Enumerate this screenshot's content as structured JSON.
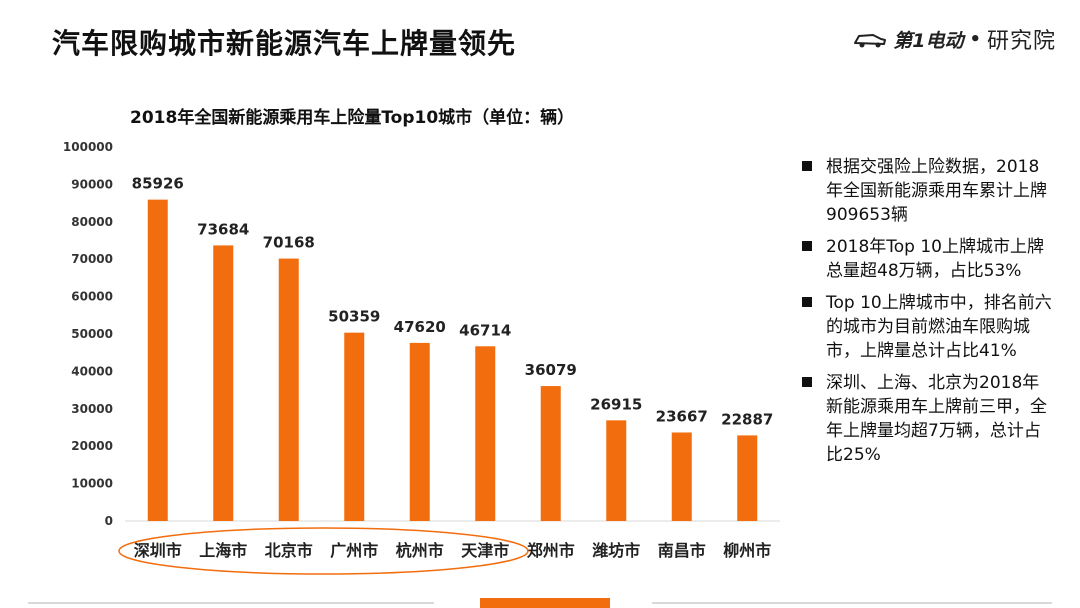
{
  "page": {
    "title": "汽车限购城市新能源汽车上牌量领先",
    "brand": {
      "logo_text": "第1电动",
      "separator": "•",
      "name": "研究院"
    },
    "notes": [
      "根据交强险上险数据，2018年全国新能源乘用车累计上牌909653辆",
      "2018年Top 10上牌城市上牌总量超48万辆，占比53%",
      "Top 10上牌城市中，排名前六的城市为目前燃油车限购城市，上牌量总计占比41%",
      "深圳、上海、北京为2018年新能源乘用车上牌前三甲，全年上牌量均超7万辆，总计占比25%"
    ]
  },
  "chart_data": {
    "type": "bar",
    "title": "2018年全国新能源乘用车上险量Top10城市（单位：辆）",
    "categories": [
      "深圳市",
      "上海市",
      "北京市",
      "广州市",
      "杭州市",
      "天津市",
      "郑州市",
      "潍坊市",
      "南昌市",
      "柳州市"
    ],
    "values": [
      85926,
      73684,
      70168,
      50359,
      47620,
      46714,
      36079,
      26915,
      23667,
      22887
    ],
    "ylim": [
      0,
      100000
    ],
    "yticks": [
      0,
      10000,
      20000,
      30000,
      40000,
      50000,
      60000,
      70000,
      80000,
      90000,
      100000
    ],
    "grid": false,
    "bar_color": "#f26d0e",
    "highlight_color": "#f26d0e",
    "highlighted_categories": [
      "深圳市",
      "上海市",
      "北京市",
      "广州市",
      "杭州市",
      "天津市"
    ]
  }
}
